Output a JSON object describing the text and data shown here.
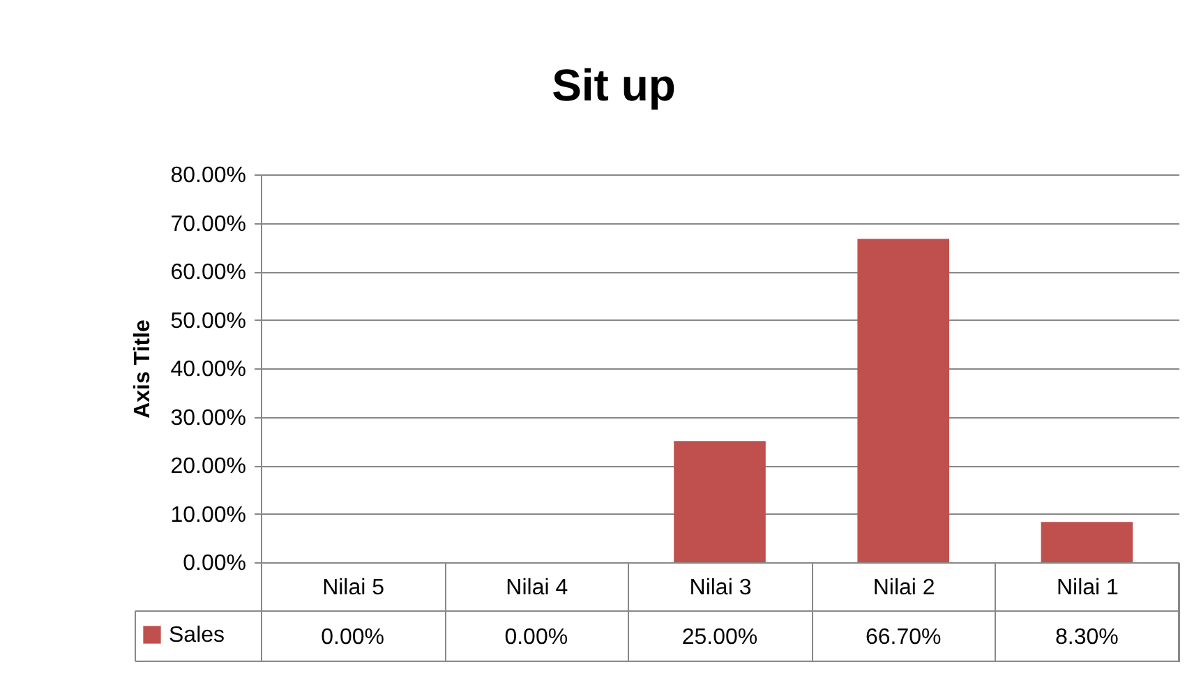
{
  "chart_data": {
    "type": "bar",
    "title": "Sit up",
    "ylabel": "Axis Title",
    "categories": [
      "Nilai 5",
      "Nilai 4",
      "Nilai 3",
      "Nilai 2",
      "Nilai 1"
    ],
    "series": [
      {
        "name": "Sales",
        "color": "#c0504d",
        "values": [
          0,
          0,
          25,
          66.7,
          8.3
        ],
        "value_labels": [
          "0.00%",
          "0.00%",
          "25.00%",
          "66.70%",
          "8.30%"
        ]
      }
    ],
    "ylim": [
      0,
      80
    ],
    "yticks": [
      {
        "value": 0,
        "label": "0.00%"
      },
      {
        "value": 10,
        "label": "10.00%"
      },
      {
        "value": 20,
        "label": "20.00%"
      },
      {
        "value": 30,
        "label": "30.00%"
      },
      {
        "value": 40,
        "label": "40.00%"
      },
      {
        "value": 50,
        "label": "50.00%"
      },
      {
        "value": 60,
        "label": "60.00%"
      },
      {
        "value": 70,
        "label": "70.00%"
      },
      {
        "value": 80,
        "label": "80.00%"
      }
    ],
    "grid": "y",
    "legend": "bottom"
  }
}
